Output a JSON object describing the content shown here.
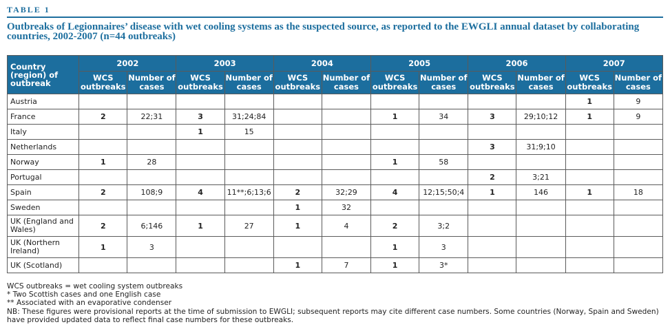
{
  "label": "Table 1",
  "title": "Outbreaks of Legionnaires’ disease with wet cooling systems as the suspected source, as reported to the EWGLI annual dataset by collaborating countries, 2002-2007 (n=44 outbreaks)",
  "header": {
    "country": "Country (region) of outbreak",
    "wcs": "WCS outbreaks",
    "cases": "Number of cases",
    "years": [
      "2002",
      "2003",
      "2004",
      "2005",
      "2006",
      "2007"
    ]
  },
  "rows": [
    {
      "name": "Austria",
      "cells": [
        "",
        "",
        "",
        "",
        "",
        "",
        "",
        "",
        "",
        "",
        "1",
        "9"
      ]
    },
    {
      "name": "France",
      "cells": [
        "2",
        "22;31",
        "3",
        "31;24;84",
        "",
        "",
        "1",
        "34",
        "3",
        "29;10;12",
        "1",
        "9"
      ]
    },
    {
      "name": "Italy",
      "cells": [
        "",
        "",
        "1",
        "15",
        "",
        "",
        "",
        "",
        "",
        "",
        "",
        ""
      ]
    },
    {
      "name": "Netherlands",
      "cells": [
        "",
        "",
        "",
        "",
        "",
        "",
        "",
        "",
        "3",
        "31;9;10",
        "",
        ""
      ]
    },
    {
      "name": "Norway",
      "cells": [
        "1",
        "28",
        "",
        "",
        "",
        "",
        "1",
        "58",
        "",
        "",
        "",
        ""
      ]
    },
    {
      "name": "Portugal",
      "cells": [
        "",
        "",
        "",
        "",
        "",
        "",
        "",
        "",
        "2",
        "3;21",
        "",
        ""
      ]
    },
    {
      "name": "Spain",
      "cells": [
        "2",
        "108;9",
        "4",
        "11**;6;13;6",
        "2",
        "32;29",
        "4",
        "12;15;50;4",
        "1",
        "146",
        "1",
        "18"
      ]
    },
    {
      "name": "Sweden",
      "cells": [
        "",
        "",
        "",
        "",
        "1",
        "32",
        "",
        "",
        "",
        "",
        "",
        ""
      ]
    },
    {
      "name": "UK (England and Wales)",
      "cells": [
        "2",
        "6;146",
        "1",
        "27",
        "1",
        "4",
        "2",
        "3;2",
        "",
        "",
        "",
        ""
      ]
    },
    {
      "name": "UK (Northern Ireland)",
      "cells": [
        "1",
        "3",
        "",
        "",
        "",
        "",
        "1",
        "3",
        "",
        "",
        "",
        ""
      ]
    },
    {
      "name": "UK (Scotland)",
      "cells": [
        "",
        "",
        "",
        "",
        "1",
        "7",
        "1",
        "3*",
        "",
        "",
        "",
        ""
      ]
    }
  ],
  "notes": [
    "WCS outbreaks = wet cooling system outbreaks",
    "* Two Scottish cases and one English case",
    "** Associated with an evaporative condenser",
    "NB: These figures were provisional reports at the time of submission to EWGLI; subsequent reports may cite different case numbers. Some countries (Norway, Spain and Sweden) have provided updated data to reflect final case numbers for these outbreaks."
  ]
}
